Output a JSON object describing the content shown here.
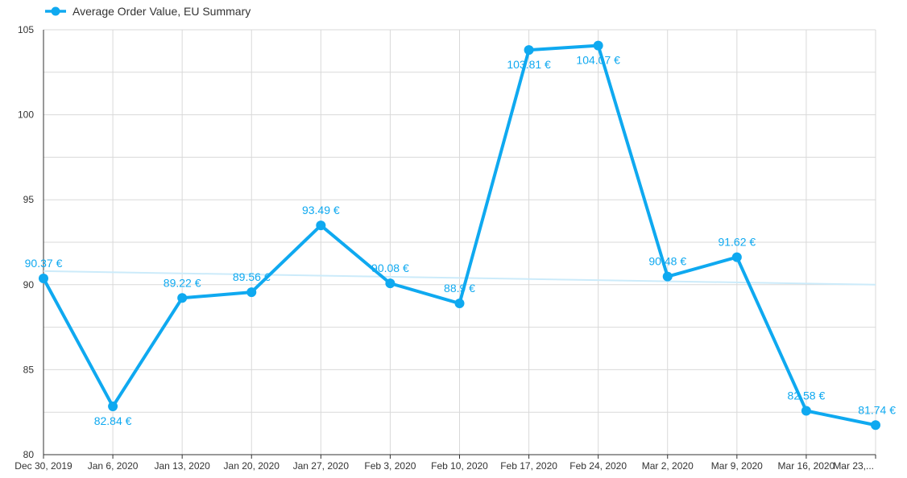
{
  "chart_data": {
    "type": "line",
    "legend": {
      "label": "Average Order Value, EU Summary",
      "position": "top-left"
    },
    "series_color": "#0FA9F0",
    "trendline_color": "#CCEBFA",
    "grid": true,
    "ylim": [
      80,
      105
    ],
    "yticks": [
      80,
      85,
      90,
      95,
      100,
      105
    ],
    "ytick_labels": [
      "80",
      "85",
      "90",
      "95",
      "100",
      "105"
    ],
    "categories": [
      "Dec 30, 2019",
      "Jan 6, 2020",
      "Jan 13, 2020",
      "Jan 20, 2020",
      "Jan 27, 2020",
      "Feb 3, 2020",
      "Feb 10, 2020",
      "Feb 17, 2020",
      "Feb 24, 2020",
      "Mar 2, 2020",
      "Mar 9, 2020",
      "Mar 16, 2020",
      "Mar 23,..."
    ],
    "series": [
      {
        "name": "Average Order Value, EU Summary",
        "values": [
          90.37,
          82.84,
          89.22,
          89.56,
          93.49,
          90.08,
          88.9,
          103.81,
          104.07,
          90.48,
          91.62,
          82.58,
          81.74
        ],
        "labels": [
          "90.37 €",
          "82.84 €",
          "89.22 €",
          "89.56 €",
          "93.49 €",
          "90.08 €",
          "88.9 €",
          "103.81 €",
          "104.07 €",
          "90.48 €",
          "91.62 €",
          "82.58 €",
          "81.74 €"
        ]
      }
    ],
    "trendline": {
      "start": 90.8,
      "end": 90.0
    }
  }
}
